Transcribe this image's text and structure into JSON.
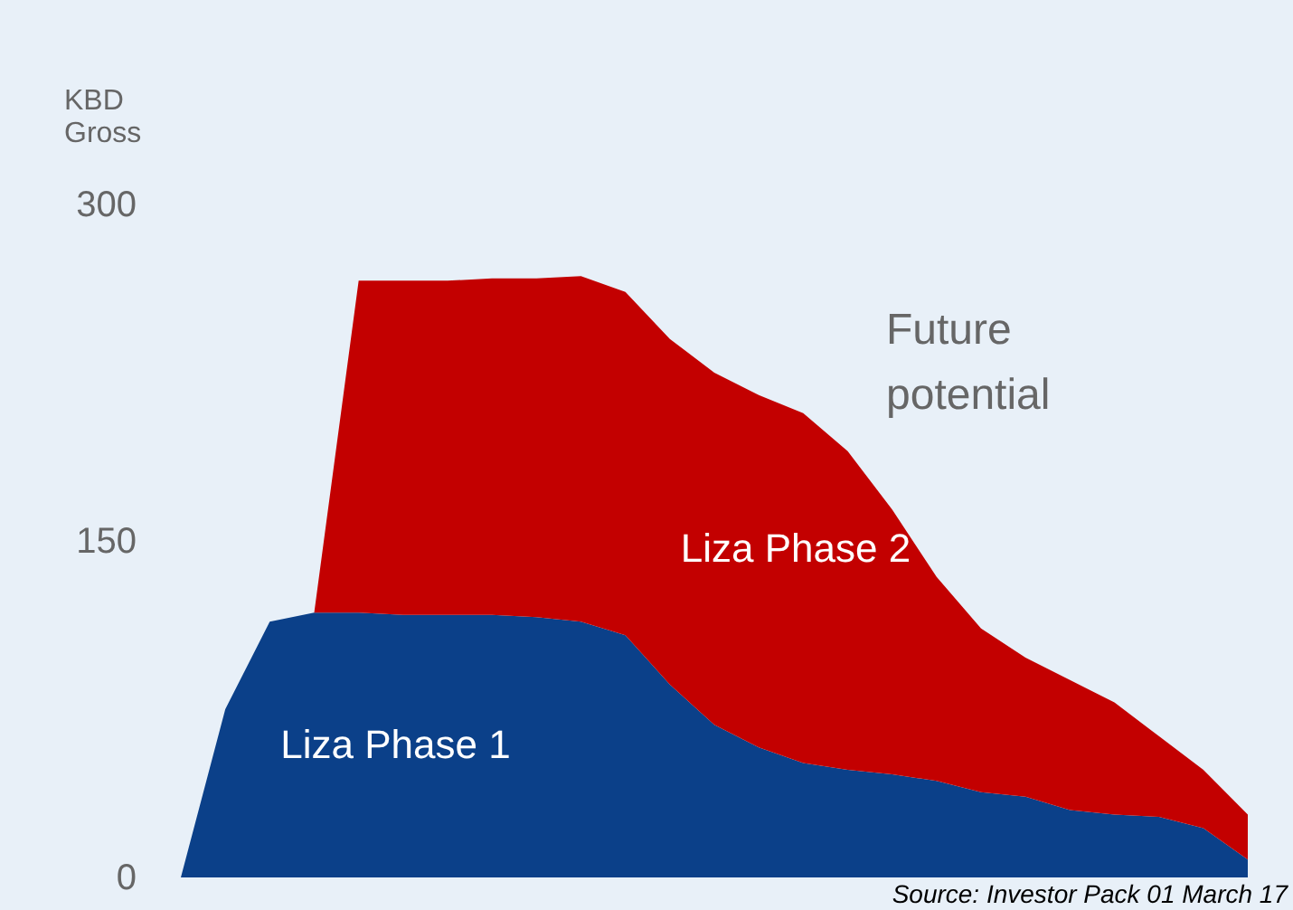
{
  "chart_data": {
    "type": "area",
    "stacked": true,
    "ylabel": "KBD Gross",
    "categories": [
      null,
      null,
      null,
      null,
      null,
      null,
      null,
      null,
      null,
      null,
      null,
      null,
      null,
      null,
      null,
      null,
      null,
      null,
      null,
      null,
      null,
      null,
      null,
      null,
      null
    ],
    "series": [
      {
        "name": "Liza Phase 1",
        "color": "#0b4089",
        "values": [
          0,
          75,
          114,
          118,
          118,
          117,
          117,
          117,
          116,
          114,
          108,
          86,
          68,
          58,
          51,
          48,
          46,
          43,
          38,
          36,
          30,
          28,
          27,
          22,
          8
        ]
      },
      {
        "name": "Liza Phase 2",
        "color": "#c30000",
        "values": [
          0,
          0,
          0,
          0,
          148,
          149,
          149,
          150,
          151,
          154,
          153,
          154,
          157,
          157,
          156,
          142,
          118,
          91,
          73,
          62,
          58,
          50,
          36,
          26,
          20
        ]
      }
    ],
    "ylim": [
      0,
      300
    ],
    "yticks": [
      0,
      150,
      300
    ],
    "grid": false,
    "legend": false,
    "annotations": [
      "Future potential",
      "Source: Investor Pack 01 March 17"
    ]
  }
}
